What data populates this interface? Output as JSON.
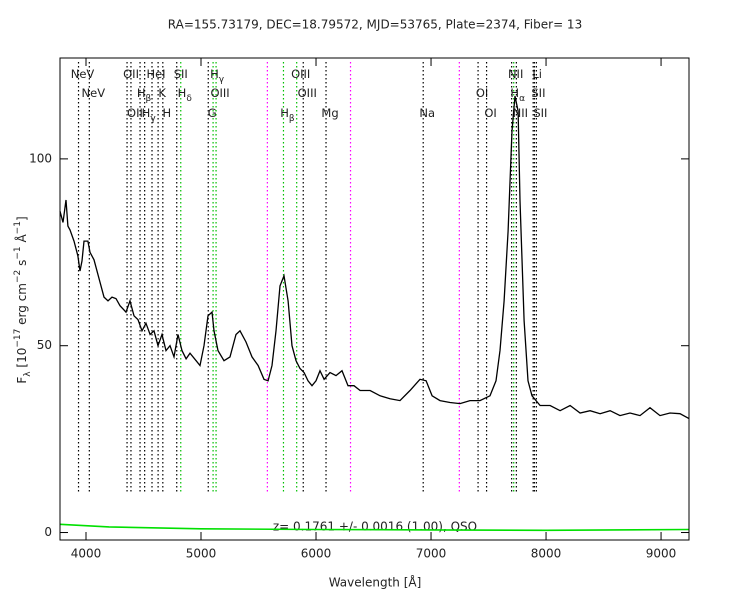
{
  "chart_data": {
    "type": "line",
    "title": "RA=155.73179, DEC=18.79572, MJD=53765, Plate=2374, Fiber= 13",
    "xlabel": "Wavelength [Å]",
    "ylabel_parts": [
      {
        "text": "F"
      },
      {
        "text": "λ",
        "shift": "sub"
      },
      {
        "text": " [10"
      },
      {
        "text": "−17",
        "shift": "sup"
      },
      {
        "text": " erg cm"
      },
      {
        "text": "−2",
        "shift": "sup"
      },
      {
        "text": " s"
      },
      {
        "text": "−1",
        "shift": "sup"
      },
      {
        "text": " Å"
      },
      {
        "text": "−1",
        "shift": "sup"
      },
      {
        "text": "]"
      }
    ],
    "annotation": "z= 0.1761 +/- 0.0016 (1.00), QSO",
    "xlim": [
      3774,
      9243
    ],
    "ylim": [
      -2,
      127
    ],
    "xticks": [
      4000,
      5000,
      6000,
      7000,
      8000,
      9000
    ],
    "yticks": [
      0,
      50,
      100
    ],
    "series": [
      {
        "color": "#000000",
        "x": [
          3774,
          3800,
          3826,
          3843,
          3861,
          3896,
          3930,
          3948,
          3965,
          3983,
          4017,
          4035,
          4070,
          4122,
          4157,
          4191,
          4226,
          4261,
          4296,
          4348,
          4383,
          4417,
          4452,
          4487,
          4522,
          4557,
          4591,
          4626,
          4661,
          4696,
          4730,
          4765,
          4800,
          4835,
          4870,
          4904,
          4957,
          4991,
          5026,
          5061,
          5096,
          5113,
          5148,
          5200,
          5252,
          5304,
          5339,
          5391,
          5443,
          5496,
          5548,
          5583,
          5617,
          5652,
          5687,
          5722,
          5757,
          5791,
          5826,
          5861,
          5896,
          5930,
          5965,
          6000,
          6035,
          6070,
          6122,
          6174,
          6226,
          6278,
          6330,
          6383,
          6470,
          6557,
          6643,
          6730,
          6817,
          6904,
          6957,
          7009,
          7078,
          7165,
          7252,
          7339,
          7426,
          7513,
          7565,
          7600,
          7635,
          7670,
          7704,
          7730,
          7757,
          7774,
          7809,
          7843,
          7878,
          7948,
          8035,
          8122,
          8209,
          8296,
          8383,
          8470,
          8557,
          8643,
          8730,
          8817,
          8904,
          8991,
          9078,
          9165,
          9243
        ],
        "values": [
          86,
          83,
          89,
          82,
          81,
          78,
          74,
          70,
          72.7,
          78,
          78,
          75,
          73,
          67,
          63,
          62,
          63,
          62.6,
          60.7,
          59,
          62,
          58,
          57,
          54,
          56,
          53,
          54,
          50,
          53,
          48.7,
          50,
          47,
          53,
          48.7,
          46.5,
          48,
          46,
          44.7,
          50,
          58,
          59,
          54,
          48.7,
          46,
          47,
          53,
          54,
          51,
          47,
          44.7,
          41,
          40.6,
          44.7,
          54,
          66,
          68.7,
          62,
          50,
          46,
          43.9,
          42.8,
          40.6,
          39.3,
          40.6,
          43.3,
          41,
          42.8,
          42,
          43.3,
          39.3,
          39.3,
          38,
          38,
          36.6,
          35.8,
          35.3,
          38,
          41,
          40.6,
          36.6,
          35.3,
          34.8,
          34.5,
          35.3,
          35.3,
          36.6,
          40.6,
          48.7,
          62,
          80.7,
          107.5,
          116.8,
          112.8,
          88.8,
          56.7,
          40.6,
          36.6,
          34,
          34,
          32.6,
          34,
          32,
          32.6,
          31.8,
          32.6,
          31.3,
          32,
          31.3,
          33.4,
          31.3,
          32,
          31.8,
          30.5
        ]
      },
      {
        "color": "#00e000",
        "x": [
          3774,
          4200,
          5000,
          6000,
          7000,
          8000,
          9243
        ],
        "values": [
          2.2,
          1.5,
          1.0,
          0.8,
          0.7,
          0.6,
          0.8
        ]
      }
    ],
    "lines": [
      {
        "wavelength": 3935,
        "color": "#000000",
        "label": "NeV",
        "row": 0
      },
      {
        "wavelength": 4029,
        "color": "#000000",
        "label": "NeV",
        "row": 1
      },
      {
        "wavelength": 4357,
        "color": "#000000",
        "label": "OII",
        "row": 0
      },
      {
        "wavelength": 4391,
        "color": "#000000",
        "label": "OII",
        "row": 2
      },
      {
        "wavelength": 4470,
        "color": "#000000",
        "label": "H",
        "sub": "β",
        "row": 1
      },
      {
        "wavelength": 4510,
        "color": "#000000",
        "label": "H",
        "sub": "γ",
        "row": 2
      },
      {
        "wavelength": 4574,
        "color": "#000000",
        "label": "HeI",
        "row": 0
      },
      {
        "wavelength": 4627,
        "color": "#000000",
        "label": "K",
        "row": 1
      },
      {
        "wavelength": 4668,
        "color": "#000000",
        "label": "H",
        "row": 2
      },
      {
        "wavelength": 4789,
        "color": "#000000",
        "label": "SII",
        "row": 0
      },
      {
        "wavelength": 4824,
        "color": "#00c000",
        "label": "H",
        "sub": "δ",
        "row": 1
      },
      {
        "wavelength": 5063,
        "color": "#000000",
        "label": "G",
        "row": 2
      },
      {
        "wavelength": 5105,
        "color": "#00c000",
        "label": "H",
        "sub": "γ",
        "row": 0
      },
      {
        "wavelength": 5131,
        "color": "#00c000",
        "label": "OIII",
        "row": 1
      },
      {
        "wavelength": 5577,
        "color": "#ff00ff"
      },
      {
        "wavelength": 5717,
        "color": "#00c000",
        "label": "H",
        "sub": "β",
        "row": 2
      },
      {
        "wavelength": 5832,
        "color": "#00c000",
        "label": "OIII",
        "row": 0
      },
      {
        "wavelength": 5889,
        "color": "#000000",
        "label": "OIII",
        "row": 1
      },
      {
        "wavelength": 6087,
        "color": "#000000",
        "label": "Mg",
        "row": 2
      },
      {
        "wavelength": 6300,
        "color": "#ff00ff"
      },
      {
        "wavelength": 6932,
        "color": "#000000",
        "label": "Na",
        "row": 2
      },
      {
        "wavelength": 7246,
        "color": "#ff00ff"
      },
      {
        "wavelength": 7409,
        "color": "#000000",
        "label": "OI",
        "row": 1
      },
      {
        "wavelength": 7483,
        "color": "#000000",
        "label": "OI",
        "row": 2
      },
      {
        "wavelength": 7701,
        "color": "#000000",
        "label": "NII",
        "row": 0
      },
      {
        "wavelength": 7719,
        "color": "#00c000",
        "label": "H",
        "sub": "α",
        "row": 1
      },
      {
        "wavelength": 7742,
        "color": "#000000",
        "label": "NII",
        "row": 2
      },
      {
        "wavelength": 7888,
        "color": "#000000",
        "label": "Li",
        "row": 0
      },
      {
        "wavelength": 7899,
        "color": "#000000",
        "label": "SII",
        "row": 1
      },
      {
        "wavelength": 7916,
        "color": "#000000",
        "label": "SII",
        "row": 2
      }
    ]
  }
}
